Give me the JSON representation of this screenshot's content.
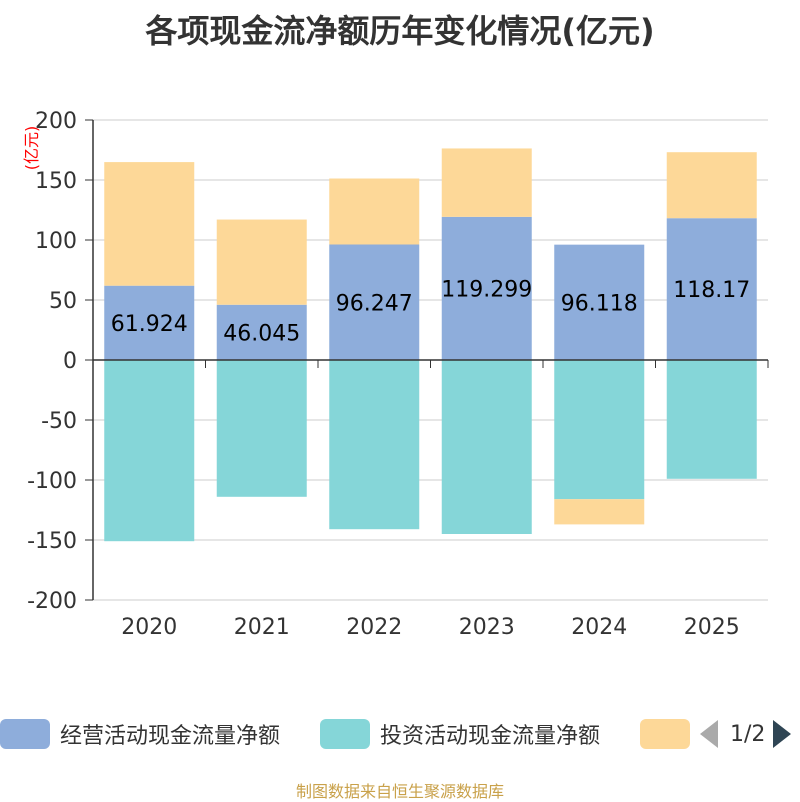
{
  "title": "各项现金流净额历年变化情况(亿元)",
  "colors": {
    "operating": "#8eaddb",
    "investing": "#85d6d8",
    "financing": "#fdd898",
    "axis": "#333333",
    "grid": "#cccccc"
  },
  "chart_data": {
    "type": "bar",
    "stacked": true,
    "ylabel": "(亿元)",
    "ylim": [
      -200,
      200
    ],
    "yticks": [
      200,
      150,
      100,
      50,
      0,
      -50,
      -100,
      -150,
      -200
    ],
    "categories": [
      "2020",
      "2021",
      "2022",
      "2023",
      "2024",
      "2025"
    ],
    "grid": true,
    "legend_position": "bottom",
    "series": [
      {
        "name": "经营活动现金流量净额",
        "values": [
          61.924,
          46.045,
          96.247,
          119.299,
          96.118,
          118.17
        ],
        "labels": [
          "61.924",
          "46.045",
          "96.247",
          "119.299",
          "96.118",
          "118.17"
        ]
      },
      {
        "name": "投资活动现金流量净额",
        "values": [
          -151,
          -114,
          -141,
          -145,
          -116,
          -99
        ]
      },
      {
        "values": [
          103,
          71,
          55,
          57,
          -21,
          55
        ]
      }
    ]
  },
  "legend": {
    "items": [
      {
        "label": "经营活动现金流量净额"
      },
      {
        "label": "投资活动现金流量净额"
      },
      {
        "label": ""
      }
    ],
    "page": "1/2"
  },
  "footer": "制图数据来自恒生聚源数据库"
}
